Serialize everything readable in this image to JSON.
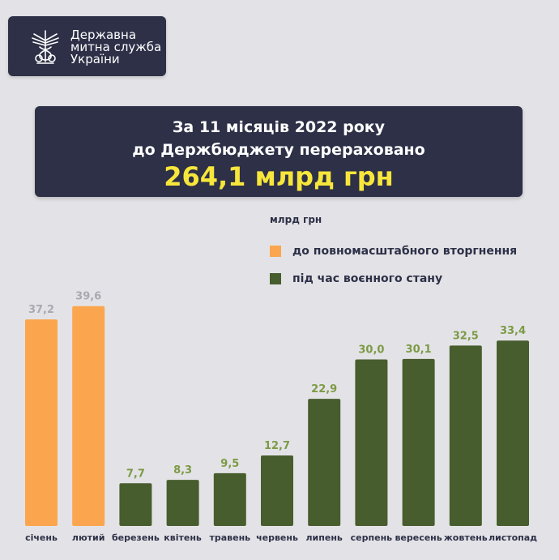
{
  "org": {
    "lines": [
      "Державна",
      "митна служба",
      "України"
    ],
    "emblem_icon": "customs-emblem-icon"
  },
  "banner": {
    "line1": "За 11 місяців 2022 року",
    "line2": "до Держбюджету перераховано",
    "total": "264,1 млрд грн"
  },
  "colors": {
    "background": "#e3e3e7",
    "navy": "#2d3047",
    "accent_yellow": "#f7e63b",
    "pre_invasion": "#fba64f",
    "martial_law": "#485d2e",
    "pre_label": "#a9a9b2",
    "martial_label": "#7d9a45"
  },
  "chart_data": {
    "type": "bar",
    "unit_label": "млрд грн",
    "categories": [
      "січень",
      "лютий",
      "березень",
      "квітень",
      "травень",
      "червень",
      "липень",
      "серпень",
      "вересень",
      "жовтень",
      "листопад"
    ],
    "values": [
      37.2,
      39.6,
      7.7,
      8.3,
      9.5,
      12.7,
      22.9,
      30.0,
      30.1,
      32.5,
      33.4
    ],
    "value_labels": [
      "37,2",
      "39,6",
      "7,7",
      "8,3",
      "9,5",
      "12,7",
      "22,9",
      "30,0",
      "30,1",
      "32,5",
      "33,4"
    ],
    "bar_period": [
      "pre",
      "pre",
      "war",
      "war",
      "war",
      "war",
      "war",
      "war",
      "war",
      "war",
      "war"
    ],
    "series": [
      {
        "key": "pre",
        "name": "до повномасштабного вторгнення"
      },
      {
        "key": "war",
        "name": "під час воєнного стану"
      }
    ],
    "ylim": [
      0,
      40
    ],
    "grid": false,
    "legend_position": "top-right"
  }
}
